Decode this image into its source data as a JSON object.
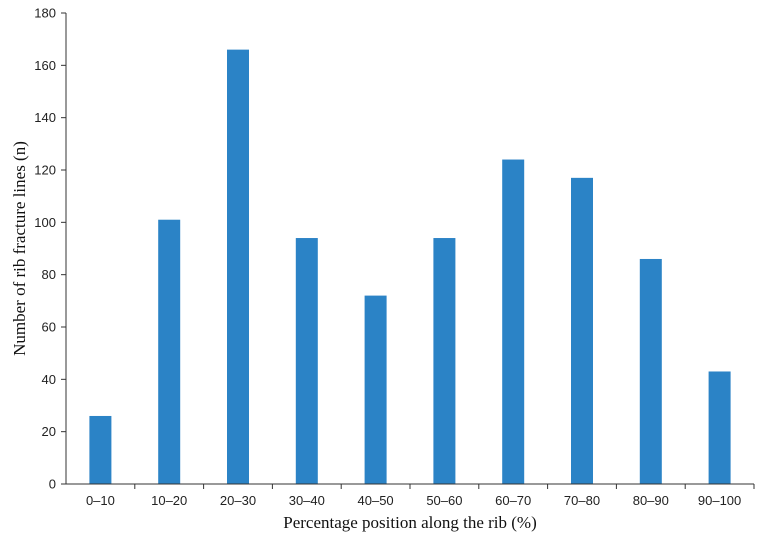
{
  "chart_data": {
    "type": "bar",
    "title": "",
    "xlabel": "Percentage position along the rib (%)",
    "ylabel": "Number of rib fracture lines (n)",
    "categories": [
      "0–10",
      "10–20",
      "20–30",
      "30–40",
      "40–50",
      "50–60",
      "60–70",
      "70–80",
      "80–90",
      "90–100"
    ],
    "values": [
      26,
      101,
      166,
      94,
      72,
      94,
      124,
      117,
      86,
      43
    ],
    "ylim": [
      0,
      180
    ],
    "yticks": [
      0,
      20,
      40,
      60,
      80,
      100,
      120,
      140,
      160,
      180
    ],
    "grid": false,
    "legend": "none",
    "bar_color": "#2b83c6",
    "axis_color": "#333333"
  }
}
